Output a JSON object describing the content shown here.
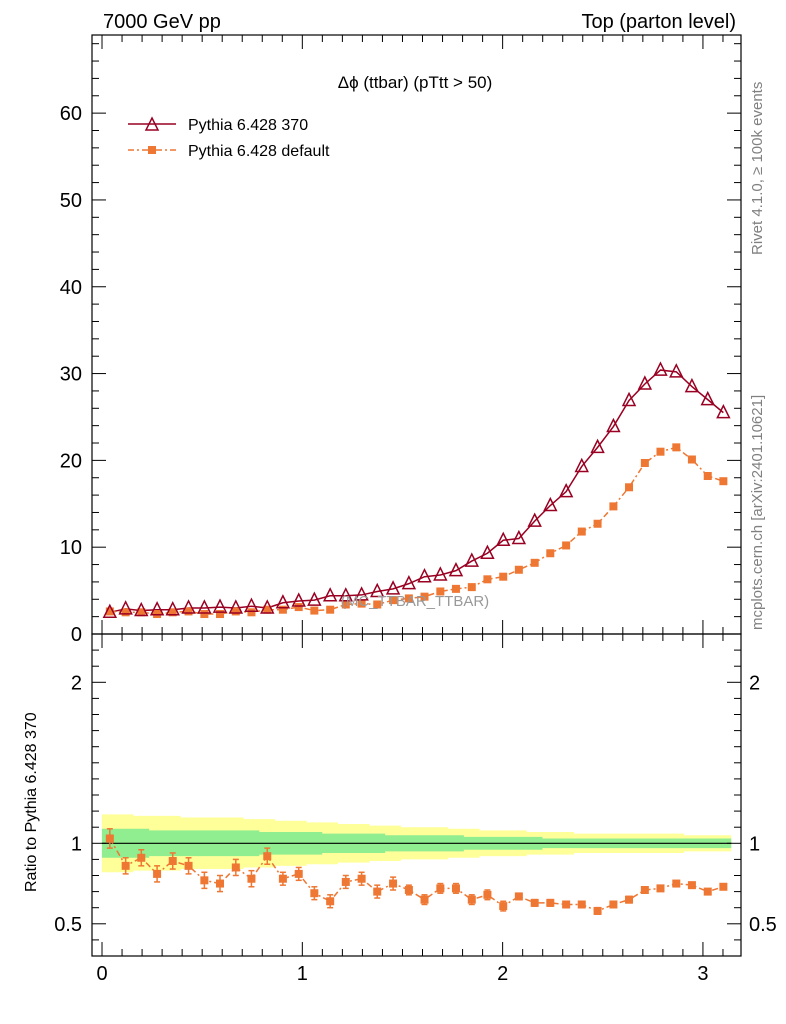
{
  "header": {
    "left": "7000 GeV pp",
    "right": "Top (parton level)"
  },
  "side_labels": {
    "rivet": "Rivet 4.1.0, ≥ 100k events",
    "mcplots": "mcplots.cern.ch [arXiv:2401.10621]"
  },
  "chart_data": {
    "type": "line",
    "title": "Δϕ (ttbar) (pTtt > 50)",
    "watermark": "(MC_TTBAR_TTBAR)",
    "xlabel": "",
    "ylabel": "",
    "xlim": [
      -0.05,
      3.19
    ],
    "ylim": [
      0,
      69
    ],
    "grid": false,
    "legend_position": "top-left",
    "x_ticks": [
      0,
      1,
      2,
      3
    ],
    "y_ticks": [
      0,
      10,
      20,
      30,
      40,
      50,
      60
    ],
    "x": [
      0.039,
      0.118,
      0.196,
      0.275,
      0.353,
      0.432,
      0.511,
      0.589,
      0.668,
      0.746,
      0.825,
      0.903,
      0.982,
      1.06,
      1.139,
      1.217,
      1.296,
      1.374,
      1.453,
      1.532,
      1.61,
      1.689,
      1.767,
      1.846,
      1.924,
      2.003,
      2.081,
      2.16,
      2.238,
      2.317,
      2.395,
      2.474,
      2.553,
      2.631,
      2.71,
      2.788,
      2.867,
      2.945,
      3.024,
      3.102
    ],
    "series": [
      {
        "name": "Pythia 6.428 370",
        "color": "#990022",
        "marker": "open-triangle",
        "line": "solid",
        "values": [
          2.5,
          2.9,
          2.7,
          2.8,
          2.8,
          3.0,
          3.0,
          3.1,
          3.0,
          3.2,
          3.0,
          3.6,
          3.8,
          3.9,
          4.4,
          4.4,
          4.5,
          4.9,
          5.2,
          5.8,
          6.6,
          6.8,
          7.3,
          8.4,
          9.3,
          10.8,
          11.0,
          13.0,
          14.8,
          16.4,
          19.3,
          21.5,
          23.9,
          26.9,
          28.8,
          30.4,
          30.2,
          28.5,
          27.0,
          25.5
        ]
      },
      {
        "name": "Pythia 6.428 default",
        "color": "#ee7733",
        "marker": "filled-square",
        "line": "dash-dot",
        "values": [
          2.6,
          2.5,
          2.5,
          2.3,
          2.5,
          2.6,
          2.3,
          2.3,
          2.6,
          2.5,
          2.8,
          2.8,
          3.1,
          2.7,
          2.8,
          3.4,
          3.5,
          3.4,
          3.9,
          4.1,
          4.3,
          4.9,
          5.2,
          5.4,
          6.3,
          6.6,
          7.4,
          8.2,
          9.3,
          10.2,
          11.8,
          12.7,
          14.7,
          16.9,
          19.7,
          21.0,
          21.5,
          20.1,
          18.2,
          17.6
        ]
      }
    ],
    "ratio": {
      "ylabel": "Ratio to Pythia 6.428 370",
      "ylim": [
        0.3,
        2.3
      ],
      "y_ticks": [
        0.5,
        1,
        2
      ],
      "y_tick_labels": [
        "0.5",
        "1",
        "2"
      ],
      "reference": 1,
      "values": [
        1.03,
        0.86,
        0.91,
        0.81,
        0.89,
        0.86,
        0.77,
        0.75,
        0.85,
        0.78,
        0.92,
        0.78,
        0.81,
        0.69,
        0.64,
        0.76,
        0.78,
        0.7,
        0.75,
        0.71,
        0.65,
        0.72,
        0.72,
        0.65,
        0.68,
        0.61,
        0.67,
        0.63,
        0.63,
        0.62,
        0.62,
        0.58,
        0.62,
        0.65,
        0.71,
        0.72,
        0.75,
        0.74,
        0.7,
        0.73
      ],
      "errors": [
        0.06,
        0.05,
        0.05,
        0.05,
        0.05,
        0.05,
        0.05,
        0.05,
        0.05,
        0.05,
        0.05,
        0.04,
        0.04,
        0.04,
        0.04,
        0.04,
        0.04,
        0.04,
        0.04,
        0.03,
        0.03,
        0.03,
        0.03,
        0.03,
        0.03,
        0.03,
        0.02,
        0.02,
        0.02,
        0.02,
        0.02,
        0.02,
        0.02,
        0.02,
        0.01,
        0.01,
        0.01,
        0.01,
        0.01,
        0.01
      ],
      "band_inner": [
        0.09,
        0.09,
        0.09,
        0.08,
        0.08,
        0.08,
        0.08,
        0.08,
        0.08,
        0.08,
        0.07,
        0.07,
        0.07,
        0.07,
        0.06,
        0.06,
        0.06,
        0.06,
        0.05,
        0.05,
        0.05,
        0.05,
        0.05,
        0.04,
        0.04,
        0.04,
        0.04,
        0.04,
        0.03,
        0.03,
        0.03,
        0.03,
        0.03,
        0.03,
        0.03,
        0.03,
        0.03,
        0.03,
        0.03,
        0.03
      ],
      "band_outer": [
        0.18,
        0.18,
        0.17,
        0.17,
        0.17,
        0.16,
        0.16,
        0.16,
        0.16,
        0.15,
        0.15,
        0.14,
        0.14,
        0.13,
        0.13,
        0.12,
        0.12,
        0.11,
        0.11,
        0.1,
        0.1,
        0.1,
        0.09,
        0.09,
        0.08,
        0.08,
        0.08,
        0.07,
        0.07,
        0.07,
        0.06,
        0.06,
        0.06,
        0.06,
        0.06,
        0.06,
        0.06,
        0.05,
        0.05,
        0.05
      ]
    }
  },
  "colors": {
    "band_inner": "#90ee90",
    "band_outer": "#ffff99",
    "frame": "#000000",
    "side_text": "#808080"
  }
}
